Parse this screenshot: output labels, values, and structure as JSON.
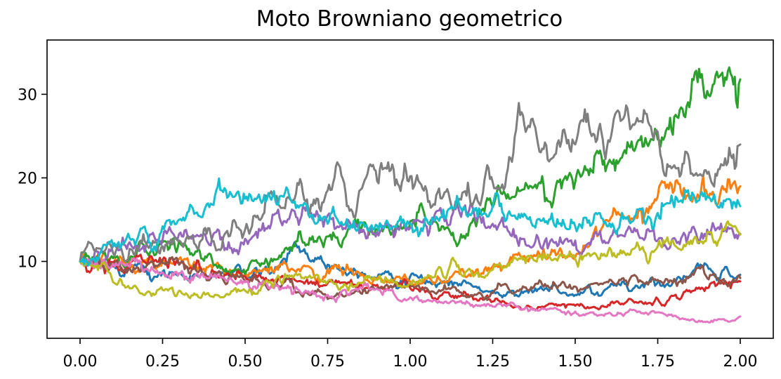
{
  "chart_data": {
    "type": "line",
    "title": "Moto Browniano geometrico",
    "xlabel": "",
    "ylabel": "",
    "xlim": [
      -0.1,
      2.1
    ],
    "ylim": [
      0.8,
      36.5
    ],
    "xticks": [
      0.0,
      0.25,
      0.5,
      0.75,
      1.0,
      1.25,
      1.5,
      1.75,
      2.0
    ],
    "xtick_labels": [
      "0.00",
      "0.25",
      "0.50",
      "0.75",
      "1.00",
      "1.25",
      "1.50",
      "1.75",
      "2.00"
    ],
    "yticks": [
      10,
      20,
      30
    ],
    "ytick_labels": [
      "10",
      "20",
      "30"
    ],
    "grid": false,
    "legend": "none",
    "x": [
      0.0,
      0.05,
      0.1,
      0.15,
      0.2,
      0.25,
      0.3,
      0.35,
      0.4,
      0.45,
      0.5,
      0.55,
      0.6,
      0.65,
      0.7,
      0.75,
      0.8,
      0.85,
      0.9,
      0.95,
      1.0,
      1.05,
      1.1,
      1.15,
      1.2,
      1.25,
      1.3,
      1.35,
      1.4,
      1.45,
      1.5,
      1.55,
      1.6,
      1.65,
      1.7,
      1.75,
      1.8,
      1.85,
      1.9,
      1.95,
      2.0
    ],
    "series": [
      {
        "color": "#1f77b4",
        "values": [
          10,
          9.8,
          9.5,
          9.2,
          9.0,
          8.8,
          8.6,
          8.4,
          8.2,
          8.3,
          8.5,
          8.8,
          9.4,
          12.3,
          10.0,
          9.6,
          9.0,
          8.5,
          8.0,
          7.9,
          8.2,
          7.7,
          7.6,
          7.3,
          7.0,
          6.5,
          6.3,
          6.4,
          6.7,
          6.4,
          6.0,
          6.2,
          6.9,
          7.3,
          7.1,
          7.5,
          7.9,
          8.4,
          9.5,
          9.0,
          8.4
        ]
      },
      {
        "color": "#ff7f0e",
        "values": [
          10,
          10.1,
          10.4,
          10.0,
          9.8,
          10.1,
          10.3,
          9.6,
          9.2,
          8.7,
          8.4,
          8.8,
          9.0,
          8.9,
          9.2,
          9.1,
          8.8,
          8.3,
          8.0,
          7.8,
          7.6,
          7.9,
          7.5,
          8.5,
          9.0,
          9.4,
          10.0,
          10.3,
          10.8,
          11.2,
          10.5,
          12.5,
          14.8,
          15.2,
          16.3,
          17.8,
          18.5,
          17.6,
          18.0,
          18.6,
          19.0
        ]
      },
      {
        "color": "#2ca02c",
        "values": [
          10,
          10.6,
          10.4,
          10.2,
          11.2,
          12.3,
          12.5,
          11.2,
          10.2,
          8.8,
          8.5,
          9.8,
          10.3,
          11.8,
          12.6,
          13.0,
          12.8,
          13.5,
          13.8,
          13.2,
          14.8,
          15.0,
          14.2,
          12.5,
          14.2,
          16.5,
          17.5,
          19.4,
          20.2,
          19.5,
          19.5,
          20.8,
          21.8,
          23.3,
          25.0,
          24.6,
          27.3,
          29.5,
          30.4,
          31.0,
          31.8
        ]
      },
      {
        "color": "#d62728",
        "values": [
          10,
          10.2,
          9.9,
          9.6,
          9.8,
          10.2,
          9.7,
          9.3,
          9.0,
          8.5,
          8.2,
          8.0,
          7.9,
          7.8,
          7.6,
          7.4,
          7.5,
          7.4,
          7.2,
          7.0,
          6.8,
          6.5,
          6.2,
          5.8,
          5.5,
          5.2,
          4.9,
          4.5,
          4.6,
          4.8,
          4.7,
          4.5,
          4.8,
          5.0,
          5.2,
          5.5,
          5.9,
          6.3,
          6.8,
          7.3,
          7.6
        ]
      },
      {
        "color": "#9467bd",
        "values": [
          10,
          11.2,
          11.8,
          12.3,
          12.0,
          12.6,
          13.3,
          13.0,
          12.8,
          12.3,
          12.7,
          13.8,
          16.2,
          16.0,
          15.8,
          15.5,
          14.0,
          13.8,
          13.5,
          12.9,
          14.0,
          14.2,
          15.5,
          15.8,
          14.8,
          14.5,
          13.5,
          12.0,
          11.5,
          12.0,
          12.5,
          12.7,
          12.2,
          13.0,
          12.8,
          12.5,
          12.8,
          13.5,
          13.8,
          13.6,
          13.3
        ]
      },
      {
        "color": "#8c564b",
        "values": [
          10,
          9.8,
          9.4,
          9.2,
          9.4,
          9.8,
          9.6,
          9.0,
          8.4,
          8.0,
          7.6,
          7.3,
          7.1,
          6.5,
          6.0,
          5.5,
          5.8,
          6.2,
          6.8,
          7.0,
          7.2,
          6.8,
          6.6,
          6.3,
          6.0,
          6.2,
          6.6,
          6.9,
          7.2,
          7.1,
          7.0,
          7.3,
          7.5,
          7.7,
          7.6,
          7.8,
          7.9,
          8.2,
          8.0,
          7.9,
          8.0
        ]
      },
      {
        "color": "#e377c2",
        "values": [
          10,
          9.9,
          9.7,
          9.4,
          9.1,
          8.7,
          8.6,
          8.4,
          8.2,
          7.8,
          7.5,
          7.4,
          7.1,
          6.6,
          6.3,
          6.0,
          6.6,
          6.9,
          6.7,
          6.2,
          5.7,
          5.3,
          5.0,
          5.2,
          4.8,
          4.6,
          4.8,
          4.5,
          4.4,
          4.2,
          4.0,
          3.9,
          3.8,
          3.7,
          3.8,
          3.9,
          3.5,
          3.0,
          2.8,
          3.1,
          3.4
        ]
      },
      {
        "color": "#7f7f7f",
        "values": [
          10,
          11.6,
          11.0,
          11.5,
          12.2,
          11.8,
          12.5,
          12.0,
          12.4,
          13.0,
          13.8,
          15.2,
          16.8,
          17.5,
          16.8,
          18.5,
          19.4,
          18.6,
          19.6,
          21.0,
          20.2,
          18.5,
          17.8,
          17.5,
          18.0,
          19.5,
          22.5,
          25.5,
          23.5,
          24.5,
          24.0,
          25.0,
          24.5,
          27.5,
          26.8,
          25.5,
          21.5,
          20.5,
          20.5,
          21.5,
          24.0
        ]
      },
      {
        "color": "#bcbd22",
        "values": [
          10,
          9.5,
          7.5,
          6.8,
          6.2,
          6.6,
          6.5,
          6.0,
          5.8,
          6.0,
          6.5,
          7.0,
          8.3,
          8.4,
          8.0,
          7.6,
          7.3,
          7.4,
          7.8,
          7.5,
          7.4,
          8.0,
          8.2,
          8.8,
          8.6,
          9.0,
          9.5,
          9.8,
          10.2,
          10.5,
          10.3,
          10.8,
          11.2,
          11.0,
          11.5,
          11.8,
          12.0,
          12.5,
          13.5,
          13.8,
          13.2
        ]
      },
      {
        "color": "#17becf",
        "values": [
          10,
          10.5,
          11.8,
          12.8,
          13.5,
          14.2,
          15.0,
          15.8,
          16.8,
          17.8,
          17.5,
          17.0,
          16.8,
          17.2,
          15.5,
          14.5,
          14.4,
          14.7,
          14.3,
          14.2,
          14.5,
          15.0,
          16.2,
          16.6,
          16.4,
          16.6,
          16.0,
          15.5,
          14.9,
          14.5,
          14.2,
          14.4,
          14.2,
          15.3,
          16.2,
          15.8,
          16.5,
          17.3,
          17.8,
          17.3,
          16.6
        ]
      }
    ]
  }
}
